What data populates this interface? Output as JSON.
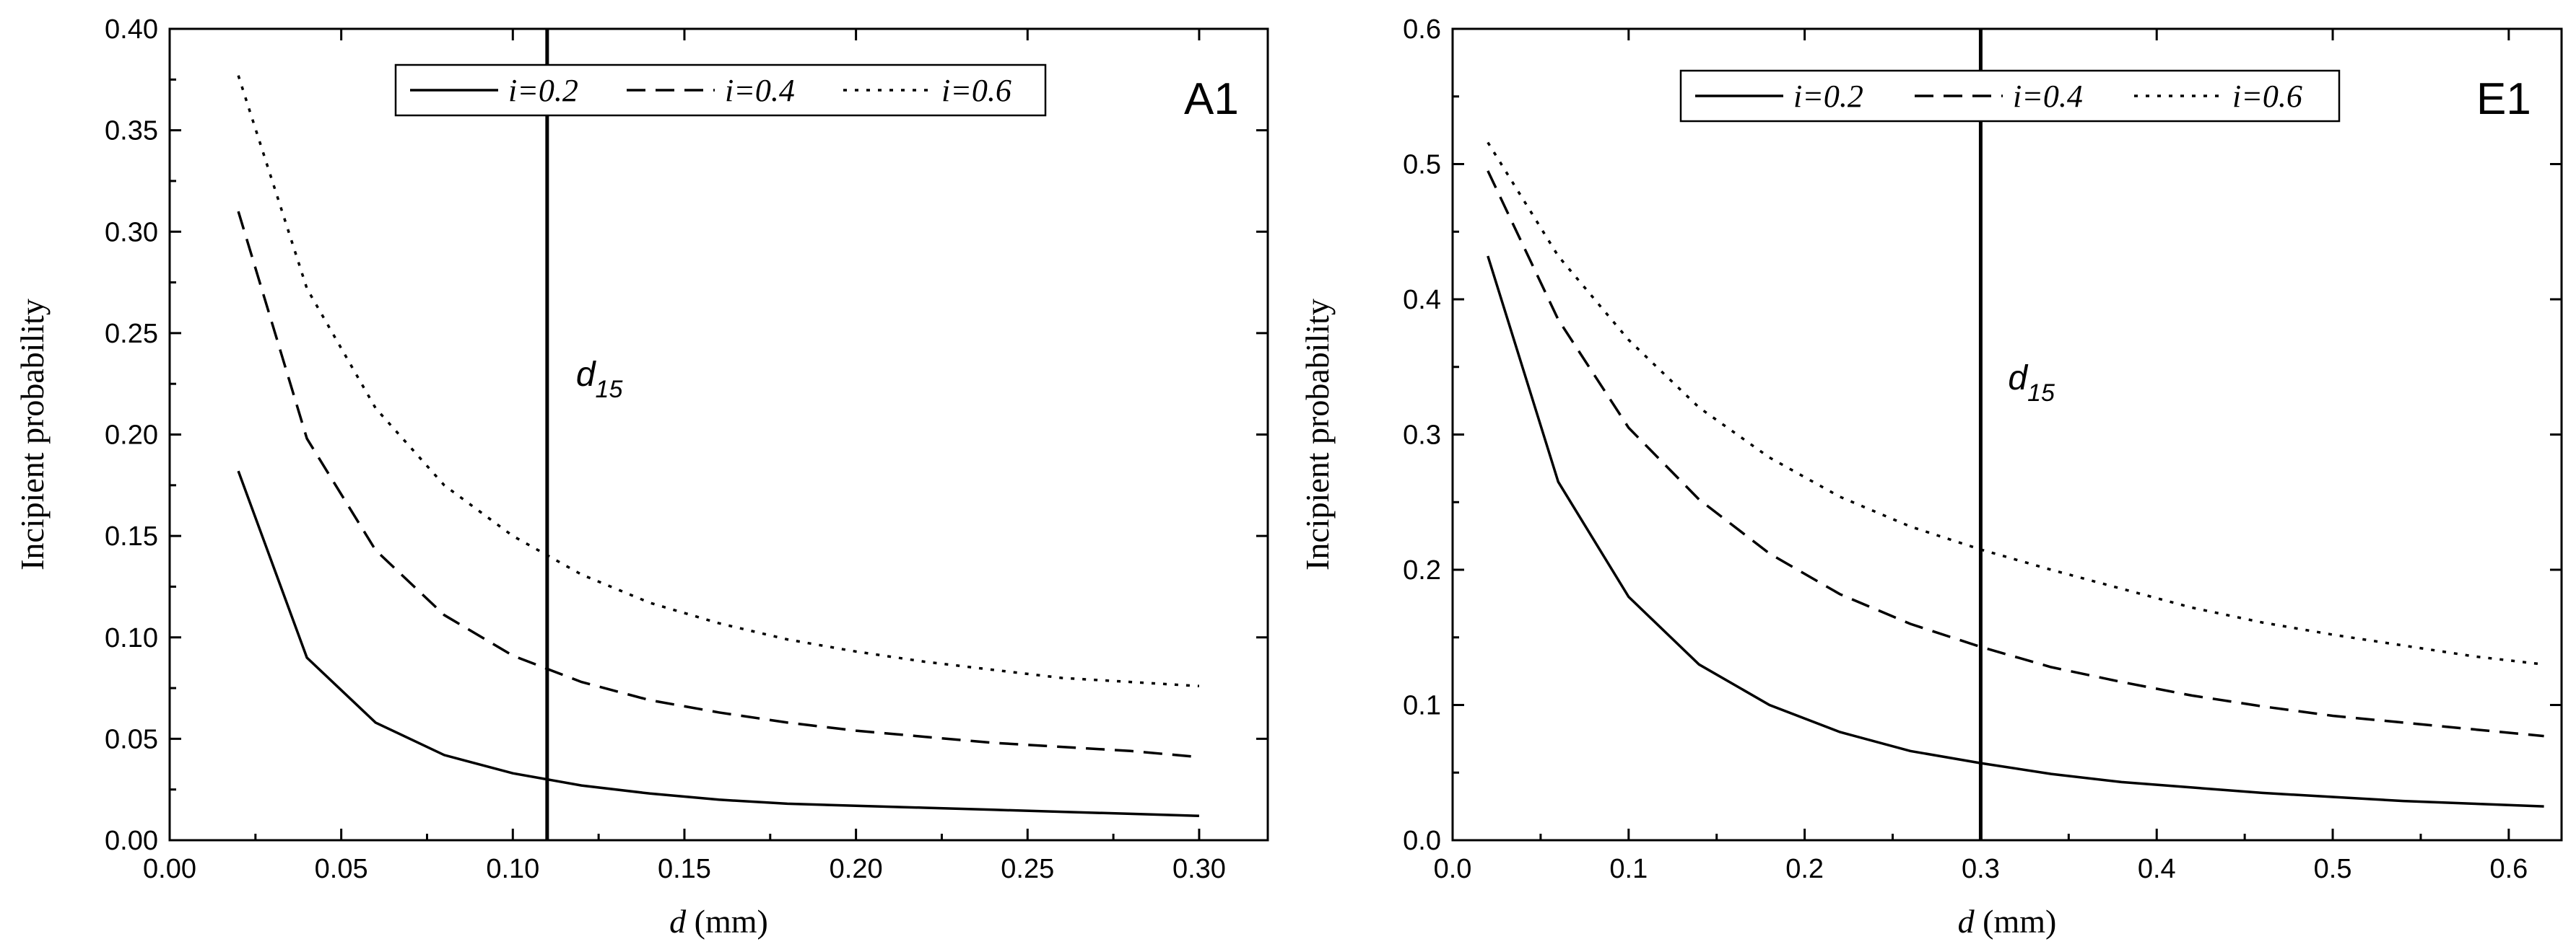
{
  "chart_data": [
    {
      "type": "line",
      "panel_label": "A1",
      "xlabel_var": "d",
      "xlabel_unit": " (mm)",
      "ylabel": "Incipient probability",
      "xlim": [
        0.0,
        0.32
      ],
      "ylim": [
        0.0,
        0.4
      ],
      "xticks": [
        0.0,
        0.05,
        0.1,
        0.15,
        0.2,
        0.25,
        0.3
      ],
      "xtick_labels": [
        "0.00",
        "0.05",
        "0.10",
        "0.15",
        "0.20",
        "0.25",
        "0.30"
      ],
      "yticks": [
        0.0,
        0.05,
        0.1,
        0.15,
        0.2,
        0.25,
        0.3,
        0.35,
        0.4
      ],
      "ytick_labels": [
        "0.00",
        "0.05",
        "0.10",
        "0.15",
        "0.20",
        "0.25",
        "0.30",
        "0.35",
        "0.40"
      ],
      "vline": {
        "x": 0.11,
        "label_main": "d",
        "label_sub": "15"
      },
      "legend_position": "top-center",
      "series": [
        {
          "name": "i=0.2",
          "style": "solid",
          "x": [
            0.02,
            0.04,
            0.06,
            0.08,
            0.1,
            0.12,
            0.14,
            0.16,
            0.18,
            0.2,
            0.22,
            0.24,
            0.26,
            0.28,
            0.3
          ],
          "y": [
            0.182,
            0.09,
            0.058,
            0.042,
            0.033,
            0.027,
            0.023,
            0.02,
            0.018,
            0.017,
            0.016,
            0.015,
            0.014,
            0.013,
            0.012
          ]
        },
        {
          "name": "i=0.4",
          "style": "dashed",
          "x": [
            0.02,
            0.04,
            0.06,
            0.08,
            0.1,
            0.12,
            0.14,
            0.16,
            0.18,
            0.2,
            0.22,
            0.24,
            0.26,
            0.28,
            0.3
          ],
          "y": [
            0.31,
            0.198,
            0.143,
            0.111,
            0.091,
            0.078,
            0.069,
            0.063,
            0.058,
            0.054,
            0.051,
            0.048,
            0.046,
            0.044,
            0.041
          ]
        },
        {
          "name": "i=0.6",
          "style": "dotted",
          "x": [
            0.02,
            0.04,
            0.06,
            0.08,
            0.1,
            0.12,
            0.14,
            0.16,
            0.18,
            0.2,
            0.22,
            0.24,
            0.26,
            0.28,
            0.3
          ],
          "y": [
            0.377,
            0.272,
            0.213,
            0.175,
            0.15,
            0.131,
            0.117,
            0.107,
            0.099,
            0.093,
            0.088,
            0.084,
            0.08,
            0.078,
            0.076
          ]
        }
      ]
    },
    {
      "type": "line",
      "panel_label": "E1",
      "xlabel_var": "d",
      "xlabel_unit": " (mm)",
      "ylabel": "Incipient probability",
      "xlim": [
        0.0,
        0.63
      ],
      "ylim": [
        0.0,
        0.6
      ],
      "xticks": [
        0.0,
        0.1,
        0.2,
        0.3,
        0.4,
        0.5,
        0.6
      ],
      "xtick_labels": [
        "0.0",
        "0.1",
        "0.2",
        "0.3",
        "0.4",
        "0.5",
        "0.6"
      ],
      "yticks": [
        0.0,
        0.1,
        0.2,
        0.3,
        0.4,
        0.5,
        0.6
      ],
      "ytick_labels": [
        "0.0",
        "0.1",
        "0.2",
        "0.3",
        "0.4",
        "0.5",
        "0.6"
      ],
      "vline": {
        "x": 0.3,
        "label_main": "d",
        "label_sub": "15"
      },
      "legend_position": "top-center",
      "series": [
        {
          "name": "i=0.2",
          "style": "solid",
          "x": [
            0.02,
            0.06,
            0.1,
            0.14,
            0.18,
            0.22,
            0.26,
            0.3,
            0.34,
            0.38,
            0.42,
            0.46,
            0.5,
            0.54,
            0.58,
            0.62
          ],
          "y": [
            0.432,
            0.265,
            0.18,
            0.13,
            0.1,
            0.08,
            0.066,
            0.057,
            0.049,
            0.043,
            0.039,
            0.035,
            0.032,
            0.029,
            0.027,
            0.025
          ]
        },
        {
          "name": "i=0.4",
          "style": "dashed",
          "x": [
            0.02,
            0.06,
            0.1,
            0.14,
            0.18,
            0.22,
            0.26,
            0.3,
            0.34,
            0.38,
            0.42,
            0.46,
            0.5,
            0.54,
            0.58,
            0.62
          ],
          "y": [
            0.495,
            0.385,
            0.305,
            0.252,
            0.212,
            0.182,
            0.16,
            0.143,
            0.128,
            0.117,
            0.107,
            0.099,
            0.092,
            0.087,
            0.082,
            0.077
          ]
        },
        {
          "name": "i=0.6",
          "style": "dotted",
          "x": [
            0.02,
            0.06,
            0.1,
            0.14,
            0.18,
            0.22,
            0.26,
            0.3,
            0.34,
            0.38,
            0.42,
            0.46,
            0.5,
            0.54,
            0.58,
            0.62
          ],
          "y": [
            0.516,
            0.432,
            0.37,
            0.32,
            0.283,
            0.254,
            0.232,
            0.215,
            0.2,
            0.186,
            0.172,
            0.161,
            0.152,
            0.144,
            0.136,
            0.13
          ]
        }
      ]
    }
  ]
}
